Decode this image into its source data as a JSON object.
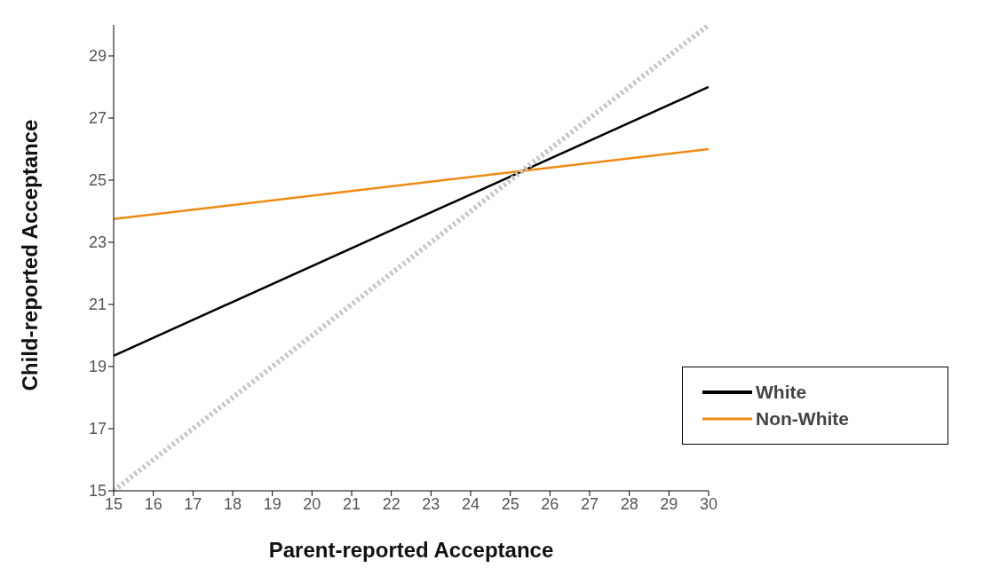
{
  "chart_data": {
    "type": "line",
    "xlabel": "Parent-reported Acceptance",
    "ylabel": "Child-reported Acceptance",
    "x": [
      15,
      30
    ],
    "series": [
      {
        "name": "White",
        "color": "#000000",
        "values": [
          19.35,
          28
        ]
      },
      {
        "name": "Non-White",
        "color": "#f08a12",
        "values": [
          23.75,
          26
        ]
      },
      {
        "color": "#c8c8c8",
        "values": [
          15,
          30
        ],
        "line_style": "dotted"
      }
    ],
    "xlim": [
      15,
      30
    ],
    "xticks": [
      15,
      16,
      17,
      18,
      19,
      20,
      21,
      22,
      23,
      24,
      25,
      26,
      27,
      28,
      29,
      30
    ],
    "ylim": [
      15,
      30
    ],
    "yticks": [
      15,
      17,
      19,
      21,
      23,
      25,
      27,
      29
    ],
    "grid": false,
    "legend": "bottom right",
    "marker": "none",
    "line_style": "solid"
  }
}
